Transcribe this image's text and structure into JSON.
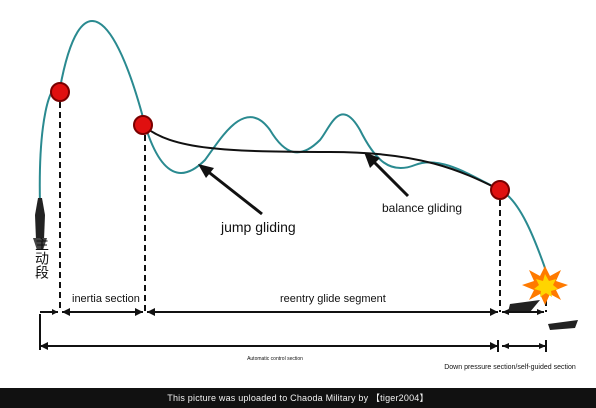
{
  "labels": {
    "jump_gliding": "jump gliding",
    "balance_gliding": "balance gliding",
    "inertia_section": "inertia section",
    "reentry_glide_segment": "reentry glide segment",
    "automatic_control_section": "Automatic control section",
    "down_pressure_section": "Down pressure section/self-guided section",
    "launch_glyph": "主动段"
  },
  "footer": {
    "text": "This picture was uploaded to Chaoda Military by 【tiger2004】"
  },
  "colors": {
    "trajectory": "#2a8a90",
    "glide_line": "#111111",
    "marker_fill": "#e01010",
    "marker_stroke": "#7a0000",
    "dashed": "#111111"
  }
}
